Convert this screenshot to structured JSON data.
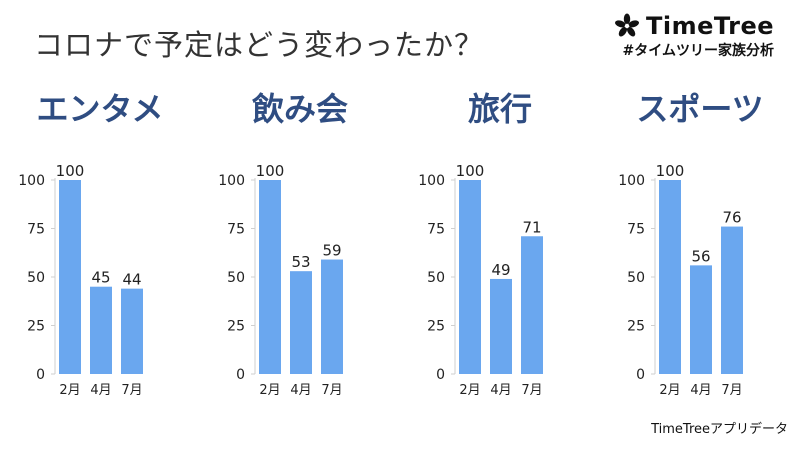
{
  "page_title": "コロナで予定はどう変わったか？",
  "brand": {
    "name": "TimeTree",
    "tagline": "#タイムツリー家族分析",
    "logo_icon": "flower-icon",
    "logo_color": "#111111"
  },
  "footer_source": "TimeTreeアプリデータ",
  "bar_color": "#6aa7ef",
  "heading_color": "#2f4d82",
  "chart_data": [
    {
      "type": "bar",
      "title": "エンタメ",
      "categories": [
        "2月",
        "4月",
        "7月"
      ],
      "values": [
        100,
        45,
        44
      ],
      "ylim": [
        0,
        100
      ],
      "yticks": [
        0,
        25,
        50,
        75,
        100
      ],
      "grid": false
    },
    {
      "type": "bar",
      "title": "飲み会",
      "categories": [
        "2月",
        "4月",
        "7月"
      ],
      "values": [
        100,
        53,
        59
      ],
      "ylim": [
        0,
        100
      ],
      "yticks": [
        0,
        25,
        50,
        75,
        100
      ],
      "grid": false
    },
    {
      "type": "bar",
      "title": "旅行",
      "categories": [
        "2月",
        "4月",
        "7月"
      ],
      "values": [
        100,
        49,
        71
      ],
      "ylim": [
        0,
        100
      ],
      "yticks": [
        0,
        25,
        50,
        75,
        100
      ],
      "grid": false
    },
    {
      "type": "bar",
      "title": "スポーツ",
      "categories": [
        "2月",
        "4月",
        "7月"
      ],
      "values": [
        100,
        56,
        76
      ],
      "ylim": [
        0,
        100
      ],
      "yticks": [
        0,
        25,
        50,
        75,
        100
      ],
      "grid": false
    }
  ]
}
